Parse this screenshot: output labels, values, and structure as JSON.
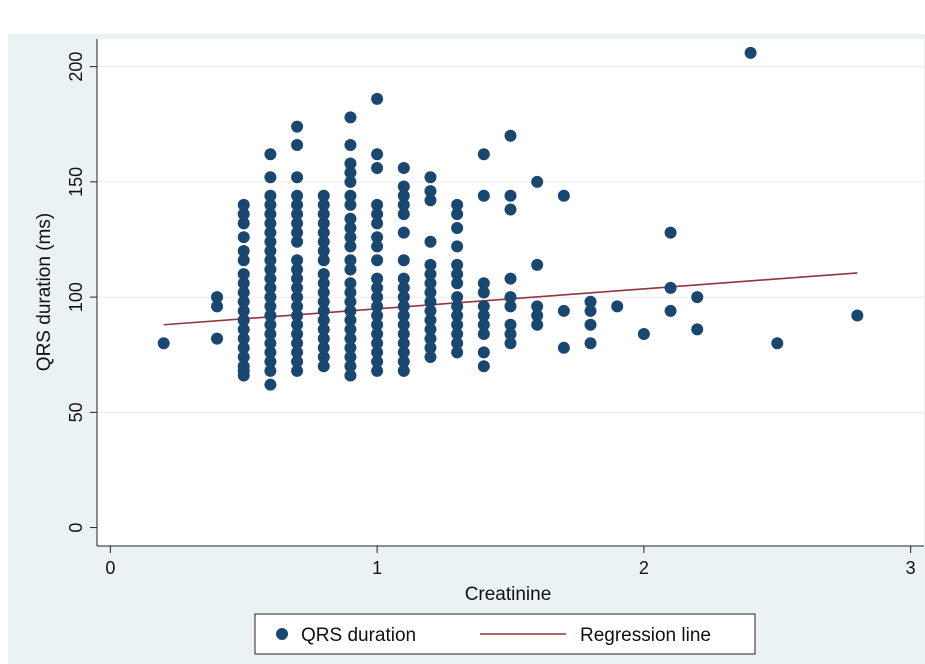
{
  "chart_data": {
    "type": "scatter",
    "xlabel": "Creatinine",
    "ylabel": "QRS duration (ms)",
    "xlim": [
      -0.05,
      3.05
    ],
    "ylim": [
      -8,
      212
    ],
    "xticks": [
      0,
      1,
      2,
      3
    ],
    "yticks": [
      0,
      50,
      100,
      150,
      200
    ],
    "grid": "horizontal",
    "legend_position": "bottom",
    "colors": {
      "points": "#1a476f",
      "line": "#90353b",
      "plot_bg": "#ffffff",
      "outer_bg": "#eaf2f3"
    },
    "series": [
      {
        "name": "QRS duration",
        "type": "scatter",
        "points": [
          [
            0.2,
            80
          ],
          [
            0.4,
            82
          ],
          [
            0.4,
            96
          ],
          [
            0.4,
            100
          ],
          [
            0.5,
            66
          ],
          [
            0.5,
            68
          ],
          [
            0.5,
            70
          ],
          [
            0.5,
            74
          ],
          [
            0.5,
            78
          ],
          [
            0.5,
            82
          ],
          [
            0.5,
            86
          ],
          [
            0.5,
            90
          ],
          [
            0.5,
            94
          ],
          [
            0.5,
            98
          ],
          [
            0.5,
            102
          ],
          [
            0.5,
            106
          ],
          [
            0.5,
            110
          ],
          [
            0.5,
            116
          ],
          [
            0.5,
            120
          ],
          [
            0.5,
            126
          ],
          [
            0.5,
            132
          ],
          [
            0.5,
            136
          ],
          [
            0.5,
            140
          ],
          [
            0.6,
            62
          ],
          [
            0.6,
            68
          ],
          [
            0.6,
            72
          ],
          [
            0.6,
            76
          ],
          [
            0.6,
            80
          ],
          [
            0.6,
            84
          ],
          [
            0.6,
            88
          ],
          [
            0.6,
            92
          ],
          [
            0.6,
            96
          ],
          [
            0.6,
            100
          ],
          [
            0.6,
            104
          ],
          [
            0.6,
            108
          ],
          [
            0.6,
            112
          ],
          [
            0.6,
            116
          ],
          [
            0.6,
            120
          ],
          [
            0.6,
            124
          ],
          [
            0.6,
            128
          ],
          [
            0.6,
            132
          ],
          [
            0.6,
            136
          ],
          [
            0.6,
            140
          ],
          [
            0.6,
            144
          ],
          [
            0.6,
            152
          ],
          [
            0.6,
            162
          ],
          [
            0.7,
            68
          ],
          [
            0.7,
            72
          ],
          [
            0.7,
            76
          ],
          [
            0.7,
            80
          ],
          [
            0.7,
            84
          ],
          [
            0.7,
            88
          ],
          [
            0.7,
            92
          ],
          [
            0.7,
            96
          ],
          [
            0.7,
            100
          ],
          [
            0.7,
            104
          ],
          [
            0.7,
            108
          ],
          [
            0.7,
            112
          ],
          [
            0.7,
            116
          ],
          [
            0.7,
            124
          ],
          [
            0.7,
            128
          ],
          [
            0.7,
            132
          ],
          [
            0.7,
            136
          ],
          [
            0.7,
            140
          ],
          [
            0.7,
            144
          ],
          [
            0.7,
            152
          ],
          [
            0.7,
            166
          ],
          [
            0.7,
            174
          ],
          [
            0.8,
            70
          ],
          [
            0.8,
            74
          ],
          [
            0.8,
            78
          ],
          [
            0.8,
            82
          ],
          [
            0.8,
            86
          ],
          [
            0.8,
            90
          ],
          [
            0.8,
            94
          ],
          [
            0.8,
            98
          ],
          [
            0.8,
            102
          ],
          [
            0.8,
            106
          ],
          [
            0.8,
            110
          ],
          [
            0.8,
            116
          ],
          [
            0.8,
            120
          ],
          [
            0.8,
            124
          ],
          [
            0.8,
            128
          ],
          [
            0.8,
            132
          ],
          [
            0.8,
            136
          ],
          [
            0.8,
            140
          ],
          [
            0.8,
            144
          ],
          [
            0.9,
            66
          ],
          [
            0.9,
            70
          ],
          [
            0.9,
            74
          ],
          [
            0.9,
            78
          ],
          [
            0.9,
            82
          ],
          [
            0.9,
            86
          ],
          [
            0.9,
            90
          ],
          [
            0.9,
            94
          ],
          [
            0.9,
            98
          ],
          [
            0.9,
            102
          ],
          [
            0.9,
            106
          ],
          [
            0.9,
            112
          ],
          [
            0.9,
            116
          ],
          [
            0.9,
            122
          ],
          [
            0.9,
            126
          ],
          [
            0.9,
            130
          ],
          [
            0.9,
            134
          ],
          [
            0.9,
            140
          ],
          [
            0.9,
            144
          ],
          [
            0.9,
            150
          ],
          [
            0.9,
            154
          ],
          [
            0.9,
            158
          ],
          [
            0.9,
            166
          ],
          [
            0.9,
            178
          ],
          [
            1.0,
            68
          ],
          [
            1.0,
            72
          ],
          [
            1.0,
            76
          ],
          [
            1.0,
            80
          ],
          [
            1.0,
            84
          ],
          [
            1.0,
            88
          ],
          [
            1.0,
            92
          ],
          [
            1.0,
            96
          ],
          [
            1.0,
            100
          ],
          [
            1.0,
            104
          ],
          [
            1.0,
            108
          ],
          [
            1.0,
            116
          ],
          [
            1.0,
            122
          ],
          [
            1.0,
            126
          ],
          [
            1.0,
            132
          ],
          [
            1.0,
            136
          ],
          [
            1.0,
            140
          ],
          [
            1.0,
            156
          ],
          [
            1.0,
            162
          ],
          [
            1.0,
            186
          ],
          [
            1.1,
            68
          ],
          [
            1.1,
            72
          ],
          [
            1.1,
            76
          ],
          [
            1.1,
            80
          ],
          [
            1.1,
            84
          ],
          [
            1.1,
            88
          ],
          [
            1.1,
            92
          ],
          [
            1.1,
            96
          ],
          [
            1.1,
            100
          ],
          [
            1.1,
            104
          ],
          [
            1.1,
            108
          ],
          [
            1.1,
            116
          ],
          [
            1.1,
            128
          ],
          [
            1.1,
            136
          ],
          [
            1.1,
            140
          ],
          [
            1.1,
            144
          ],
          [
            1.1,
            148
          ],
          [
            1.1,
            156
          ],
          [
            1.2,
            74
          ],
          [
            1.2,
            78
          ],
          [
            1.2,
            82
          ],
          [
            1.2,
            86
          ],
          [
            1.2,
            90
          ],
          [
            1.2,
            94
          ],
          [
            1.2,
            98
          ],
          [
            1.2,
            102
          ],
          [
            1.2,
            106
          ],
          [
            1.2,
            110
          ],
          [
            1.2,
            114
          ],
          [
            1.2,
            124
          ],
          [
            1.2,
            142
          ],
          [
            1.2,
            146
          ],
          [
            1.2,
            152
          ],
          [
            1.3,
            76
          ],
          [
            1.3,
            80
          ],
          [
            1.3,
            84
          ],
          [
            1.3,
            88
          ],
          [
            1.3,
            92
          ],
          [
            1.3,
            96
          ],
          [
            1.3,
            100
          ],
          [
            1.3,
            106
          ],
          [
            1.3,
            110
          ],
          [
            1.3,
            114
          ],
          [
            1.3,
            122
          ],
          [
            1.3,
            130
          ],
          [
            1.3,
            136
          ],
          [
            1.3,
            140
          ],
          [
            1.4,
            70
          ],
          [
            1.4,
            76
          ],
          [
            1.4,
            84
          ],
          [
            1.4,
            88
          ],
          [
            1.4,
            92
          ],
          [
            1.4,
            96
          ],
          [
            1.4,
            102
          ],
          [
            1.4,
            106
          ],
          [
            1.4,
            144
          ],
          [
            1.4,
            162
          ],
          [
            1.5,
            80
          ],
          [
            1.5,
            84
          ],
          [
            1.5,
            88
          ],
          [
            1.5,
            96
          ],
          [
            1.5,
            100
          ],
          [
            1.5,
            108
          ],
          [
            1.5,
            138
          ],
          [
            1.5,
            144
          ],
          [
            1.5,
            170
          ],
          [
            1.6,
            88
          ],
          [
            1.6,
            92
          ],
          [
            1.6,
            96
          ],
          [
            1.6,
            114
          ],
          [
            1.6,
            150
          ],
          [
            1.7,
            78
          ],
          [
            1.7,
            94
          ],
          [
            1.7,
            144
          ],
          [
            1.8,
            80
          ],
          [
            1.8,
            88
          ],
          [
            1.8,
            94
          ],
          [
            1.8,
            98
          ],
          [
            1.9,
            96
          ],
          [
            2.0,
            84
          ],
          [
            2.1,
            94
          ],
          [
            2.1,
            104
          ],
          [
            2.1,
            128
          ],
          [
            2.2,
            86
          ],
          [
            2.2,
            100
          ],
          [
            2.4,
            206
          ],
          [
            2.5,
            80
          ],
          [
            2.8,
            92
          ]
        ]
      },
      {
        "name": "Regression line",
        "type": "line",
        "points": [
          [
            0.2,
            88
          ],
          [
            2.8,
            110.5
          ]
        ]
      }
    ]
  }
}
